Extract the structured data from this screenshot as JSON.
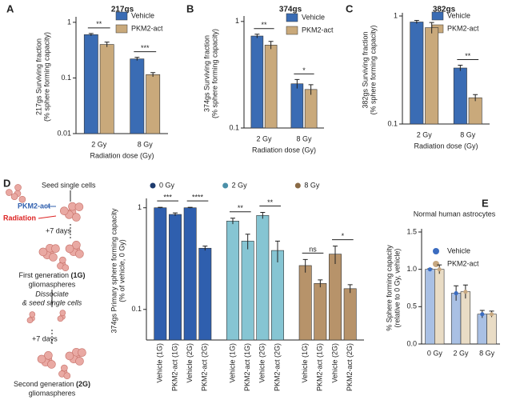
{
  "chart_data": [
    {
      "type": "bar",
      "panel": "A",
      "title": "217gs",
      "ylabel": [
        "217gs Surviving fraction",
        "(% sphere forming capacity)"
      ],
      "xlabel": "Radiation dose (Gy)",
      "categories": [
        "2 Gy",
        "8 Gy"
      ],
      "series": [
        {
          "name": "Vehicle",
          "color": "#3a6cb4",
          "values": [
            0.6,
            0.22
          ],
          "errors": [
            0.03,
            0.015
          ]
        },
        {
          "name": "PKM2-act",
          "color": "#c9a97b",
          "values": [
            0.4,
            0.115
          ],
          "errors": [
            0.04,
            0.01
          ]
        }
      ],
      "significance": [
        "**",
        "***"
      ],
      "ylim": [
        0.01,
        1.1
      ],
      "yticks": [
        0.01,
        0.1,
        1
      ],
      "log_scale": true
    },
    {
      "type": "bar",
      "panel": "B",
      "title": "374gs",
      "ylabel": [
        "374gs Surviving fraction",
        "(% sphere forming capacity)"
      ],
      "xlabel": "Radiation dose (Gy)",
      "categories": [
        "2 Gy",
        "8 Gy"
      ],
      "series": [
        {
          "name": "Vehicle",
          "color": "#3a6cb4",
          "values": [
            0.73,
            0.26
          ],
          "errors": [
            0.03,
            0.025
          ]
        },
        {
          "name": "PKM2-act",
          "color": "#c9a97b",
          "values": [
            0.6,
            0.23
          ],
          "errors": [
            0.05,
            0.025
          ]
        }
      ],
      "significance": [
        "**",
        "*"
      ],
      "ylim": [
        0.1,
        1.05
      ],
      "yticks": [
        0.1,
        1
      ],
      "log_scale": true
    },
    {
      "type": "bar",
      "panel": "C",
      "title": "382gs",
      "ylabel": [
        "382gs Surviving fraction",
        "(% sphere forming capacity)"
      ],
      "xlabel": "Radiation dose (Gy)",
      "categories": [
        "2 Gy",
        "8 Gy"
      ],
      "series": [
        {
          "name": "Vehicle",
          "color": "#3a6cb4",
          "values": [
            0.88,
            0.33
          ],
          "errors": [
            0.03,
            0.02
          ]
        },
        {
          "name": "PKM2-act",
          "color": "#c9a97b",
          "values": [
            0.78,
            0.175
          ],
          "errors": [
            0.09,
            0.012
          ]
        }
      ],
      "significance": [
        null,
        "**"
      ],
      "ylim": [
        0.1,
        1.0
      ],
      "yticks": [
        0.1,
        1
      ],
      "log_scale": true
    },
    {
      "type": "bar",
      "panel": "D",
      "ylabel": [
        "374gs Primary sphere forming capacity",
        "(% of vehicle, 0 Gy)"
      ],
      "categories": [
        "Vehicle (1G)",
        "PKM2-act (1G)",
        "Vehicle (2G)",
        "PKM2-act (2G)"
      ],
      "series": [
        {
          "name": "0 Gy",
          "color": "#2f5fae",
          "marker_color": "#1d3b6e",
          "values": [
            1,
            0.86,
            1,
            0.4
          ],
          "errors": [
            0.01,
            0.03,
            0.01,
            0.02
          ],
          "significance": [
            "***",
            "****"
          ]
        },
        {
          "name": "2 Gy",
          "color": "#86c5d3",
          "marker_color": "#4a8fa8",
          "values": [
            0.74,
            0.47,
            0.84,
            0.38
          ],
          "errors": [
            0.05,
            0.08,
            0.06,
            0.09
          ],
          "significance": [
            "**",
            "**"
          ]
        },
        {
          "name": "8 Gy",
          "color": "#b7936a",
          "marker_color": "#8a6a45",
          "values": [
            0.27,
            0.18,
            0.35,
            0.16
          ],
          "errors": [
            0.04,
            0.015,
            0.07,
            0.015
          ],
          "significance": [
            "ns",
            "*"
          ]
        }
      ],
      "ylim": [
        0.05,
        1.15
      ],
      "yticks": [
        0.1,
        1
      ],
      "log_scale": true
    },
    {
      "type": "bar",
      "panel": "E",
      "title": "Normal human astrocytes",
      "ylabel": [
        "% Sphere forming capacity",
        "(relative to 0 Gy, vehicle)"
      ],
      "categories": [
        "0 Gy",
        "2 Gy",
        "8 Gy"
      ],
      "series": [
        {
          "name": "Vehicle",
          "color": "#a9c0e4",
          "marker_color": "#3b6cc0",
          "values": [
            1,
            0.68,
            0.4
          ],
          "errors": [
            0.01,
            0.1,
            0.05
          ]
        },
        {
          "name": "PKM2-act",
          "color": "#e9dcc5",
          "marker_color": "#c7a880",
          "values": [
            1,
            0.7,
            0.4
          ],
          "errors": [
            0.06,
            0.09,
            0.04
          ]
        }
      ],
      "ylim": [
        0,
        1.5
      ],
      "yticks": [
        {
          "value": 0,
          "label": "0.0"
        },
        {
          "value": 0.5,
          "label": "0.5"
        },
        {
          "value": 1,
          "label": "1.0"
        },
        {
          "value": 1.5,
          "label": "1.5"
        }
      ],
      "log_scale": false
    }
  ],
  "diagram": {
    "seed": "Seed single cells",
    "treatments": [
      "PKM2-act",
      "Radiation"
    ],
    "days": [
      "+7 days",
      "+7 days"
    ],
    "first": [
      "First generation ",
      "(1G)",
      "gliomaspheres"
    ],
    "dissociate": [
      "Dissociate",
      "& seed single cells"
    ],
    "second": [
      "Second generation ",
      "(2G)",
      "gliomaspheres"
    ]
  }
}
